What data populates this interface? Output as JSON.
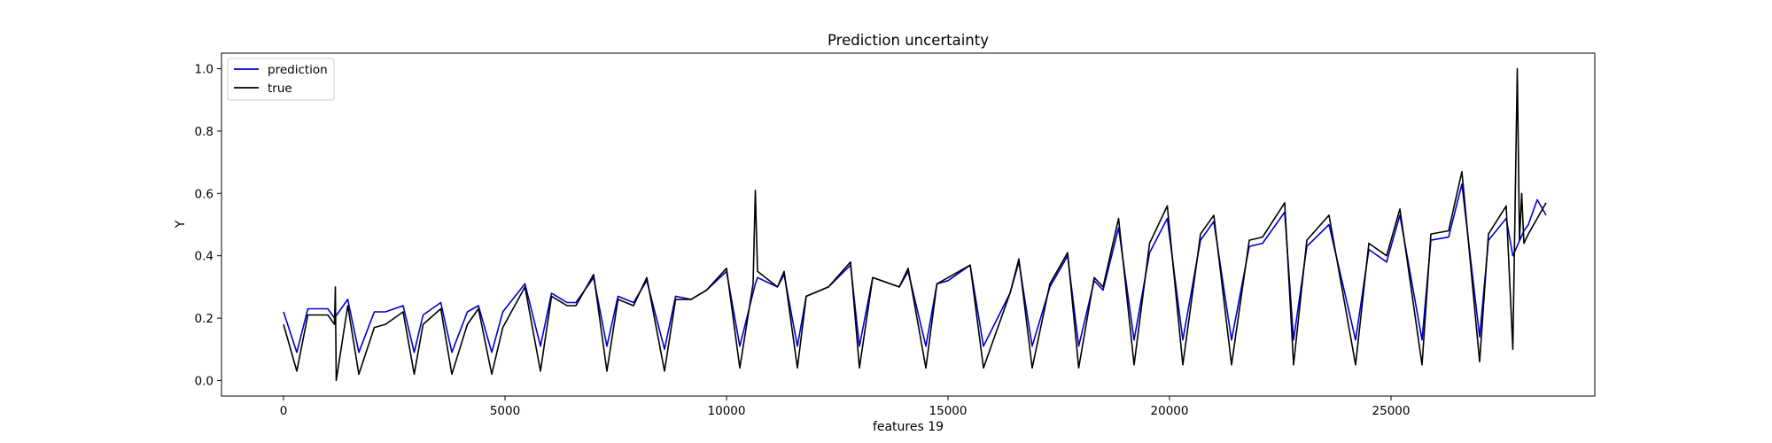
{
  "chart_data": {
    "type": "line",
    "title": "Prediction uncertainty",
    "xlabel": "features 19",
    "ylabel": "Y",
    "xlim": [
      -1400,
      29600
    ],
    "ylim": [
      -0.05,
      1.05
    ],
    "xticks": [
      0,
      5000,
      10000,
      15000,
      20000,
      25000
    ],
    "yticks": [
      0.0,
      0.2,
      0.4,
      0.6,
      0.8,
      1.0
    ],
    "xtick_labels": [
      "0",
      "5000",
      "10000",
      "15000",
      "20000",
      "25000"
    ],
    "ytick_labels": [
      "0.0",
      "0.2",
      "0.4",
      "0.6",
      "0.8",
      "1.0"
    ],
    "grid": false,
    "legend": {
      "position": "upper-left",
      "entries": [
        "prediction",
        "true"
      ]
    },
    "series": [
      {
        "name": "prediction",
        "color": "#0000cc",
        "x": [
          0,
          300,
          550,
          1000,
          1150,
          1450,
          1700,
          2050,
          2300,
          2700,
          2950,
          3150,
          3550,
          3800,
          4150,
          4400,
          4700,
          4950,
          5450,
          5800,
          6050,
          6400,
          6600,
          7000,
          7300,
          7550,
          7900,
          8200,
          8600,
          8850,
          9200,
          9550,
          10000,
          10300,
          10650,
          10700,
          11150,
          11300,
          11600,
          11800,
          12300,
          12800,
          13000,
          13300,
          13900,
          14100,
          14500,
          14750,
          15000,
          15500,
          15800,
          16400,
          16600,
          16900,
          17300,
          17700,
          17950,
          18300,
          18500,
          18850,
          19200,
          19550,
          19950,
          20300,
          20700,
          21000,
          21400,
          21800,
          22100,
          22600,
          22800,
          23100,
          23600,
          24200,
          24500,
          24900,
          25200,
          25700,
          25900,
          26300,
          26600,
          27000,
          27200,
          27600,
          27750,
          28000,
          28100,
          28300,
          28500
        ],
        "y": [
          0.22,
          0.09,
          0.23,
          0.23,
          0.2,
          0.26,
          0.09,
          0.22,
          0.22,
          0.24,
          0.09,
          0.21,
          0.25,
          0.09,
          0.22,
          0.24,
          0.09,
          0.22,
          0.31,
          0.11,
          0.28,
          0.25,
          0.25,
          0.33,
          0.11,
          0.27,
          0.25,
          0.32,
          0.1,
          0.27,
          0.26,
          0.29,
          0.35,
          0.11,
          0.31,
          0.33,
          0.3,
          0.34,
          0.11,
          0.27,
          0.3,
          0.37,
          0.11,
          0.33,
          0.3,
          0.35,
          0.11,
          0.31,
          0.32,
          0.37,
          0.11,
          0.28,
          0.38,
          0.11,
          0.3,
          0.4,
          0.11,
          0.32,
          0.29,
          0.49,
          0.13,
          0.41,
          0.52,
          0.13,
          0.45,
          0.51,
          0.13,
          0.43,
          0.44,
          0.54,
          0.13,
          0.43,
          0.5,
          0.13,
          0.42,
          0.38,
          0.53,
          0.13,
          0.45,
          0.46,
          0.63,
          0.14,
          0.45,
          0.52,
          0.4,
          0.48,
          0.5,
          0.58,
          0.53
        ]
      },
      {
        "name": "true",
        "color": "#000000",
        "x": [
          0,
          300,
          550,
          1000,
          1150,
          1170,
          1190,
          1450,
          1700,
          2050,
          2300,
          2700,
          2950,
          3150,
          3550,
          3800,
          4150,
          4400,
          4700,
          4950,
          5450,
          5800,
          6050,
          6400,
          6600,
          7000,
          7300,
          7550,
          7900,
          8200,
          8600,
          8850,
          9200,
          9550,
          10000,
          10300,
          10600,
          10650,
          10700,
          11150,
          11300,
          11600,
          11800,
          12300,
          12800,
          13000,
          13300,
          13900,
          14100,
          14500,
          14750,
          15000,
          15500,
          15800,
          16400,
          16600,
          16900,
          17300,
          17700,
          17950,
          18300,
          18500,
          18850,
          19200,
          19550,
          19950,
          20300,
          20700,
          21000,
          21400,
          21800,
          22100,
          22600,
          22800,
          23100,
          23600,
          24200,
          24500,
          24900,
          25200,
          25700,
          25900,
          26300,
          26600,
          27000,
          27200,
          27600,
          27750,
          27850,
          27900,
          27950,
          28000,
          28100,
          28300,
          28500
        ],
        "y": [
          0.18,
          0.03,
          0.21,
          0.21,
          0.18,
          0.3,
          0.0,
          0.24,
          0.02,
          0.17,
          0.18,
          0.22,
          0.02,
          0.18,
          0.23,
          0.02,
          0.18,
          0.23,
          0.02,
          0.17,
          0.3,
          0.03,
          0.27,
          0.24,
          0.24,
          0.34,
          0.03,
          0.26,
          0.24,
          0.33,
          0.03,
          0.26,
          0.26,
          0.29,
          0.36,
          0.04,
          0.31,
          0.61,
          0.35,
          0.3,
          0.35,
          0.04,
          0.27,
          0.3,
          0.38,
          0.04,
          0.33,
          0.3,
          0.36,
          0.04,
          0.31,
          0.33,
          0.37,
          0.04,
          0.28,
          0.39,
          0.04,
          0.31,
          0.41,
          0.04,
          0.33,
          0.3,
          0.52,
          0.05,
          0.44,
          0.56,
          0.05,
          0.47,
          0.53,
          0.05,
          0.45,
          0.46,
          0.57,
          0.05,
          0.45,
          0.53,
          0.05,
          0.44,
          0.4,
          0.55,
          0.05,
          0.47,
          0.48,
          0.67,
          0.06,
          0.47,
          0.56,
          0.1,
          1.0,
          0.45,
          0.6,
          0.44,
          0.47,
          0.52,
          0.57
        ]
      }
    ]
  }
}
